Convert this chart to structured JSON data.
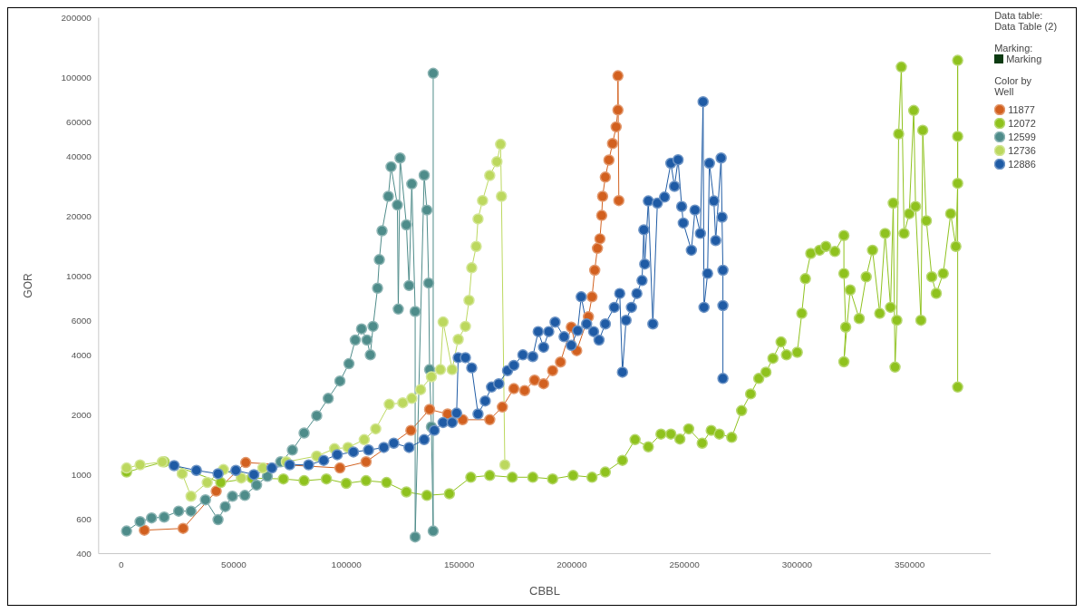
{
  "chart_data": {
    "type": "line",
    "xlabel": "CBBL",
    "ylabel": "GOR",
    "legend_title": "Color by Well",
    "legend": "right",
    "marker": "circle",
    "log": "y",
    "annotations": [
      "Data table:",
      "Data Table (2)",
      "Marking:",
      "Marking"
    ],
    "xlim": [
      -10000,
      386000
    ],
    "xticks": [
      0,
      50000,
      100000,
      150000,
      200000,
      250000,
      300000,
      350000
    ],
    "ylim": [
      400,
      200000
    ],
    "yticks": [
      400,
      600,
      1000,
      2000,
      4000,
      6000,
      10000,
      20000,
      40000,
      60000,
      100000,
      200000
    ],
    "series": [
      {
        "name": "11877",
        "color": "#d2601f",
        "x": [
          10300,
          27500,
          42200,
          55300,
          97100,
          108700,
          128600,
          136900,
          144900,
          151600,
          163600,
          169200,
          174300,
          179100,
          183500,
          187500,
          191500,
          195000,
          199800,
          202200,
          207400,
          209000,
          210200,
          211400,
          212500,
          213300,
          213700,
          214900,
          216500,
          218100,
          219700,
          220500,
          220500,
          220900
        ],
        "values": [
          525,
          536,
          826,
          1150,
          1080,
          1160,
          1670,
          2130,
          2020,
          1890,
          1890,
          2190,
          2710,
          2650,
          2990,
          2870,
          3340,
          3690,
          5530,
          4210,
          6240,
          7860,
          10700,
          13800,
          15400,
          20200,
          25200,
          31500,
          38400,
          46500,
          56400,
          68600,
          102000,
          24000
        ]
      },
      {
        "name": "12072",
        "color": "#8fc21e",
        "x": [
          2400,
          19100,
          44200,
          58100,
          72000,
          81200,
          91100,
          99900,
          108700,
          117800,
          126600,
          135700,
          145700,
          155200,
          163600,
          173600,
          182700,
          191500,
          200600,
          209000,
          214900,
          222500,
          228100,
          234000,
          239600,
          244000,
          248000,
          251900,
          257900,
          261900,
          265500,
          271000,
          275400,
          279400,
          283000,
          286200,
          289300,
          292900,
          295300,
          300100,
          302100,
          303700,
          306100,
          310000,
          312800,
          316800,
          320800,
          320800,
          321600,
          320800,
          323600,
          327600,
          330700,
          333500,
          336700,
          339100,
          341500,
          342700,
          343500,
          344300,
          345100,
          346300,
          347500,
          349800,
          351800,
          352600,
          355000,
          355800,
          357400,
          359800,
          361800,
          364900,
          368200,
          370500,
          371300,
          371300,
          371300,
          371300
        ],
        "values": [
          1030,
          1160,
          913,
          961,
          951,
          932,
          951,
          904,
          932,
          913,
          818,
          786,
          801,
          970,
          990,
          970,
          970,
          951,
          990,
          970,
          1030,
          1180,
          1500,
          1380,
          1600,
          1600,
          1510,
          1700,
          1440,
          1670,
          1600,
          1540,
          2100,
          2550,
          3050,
          3280,
          3850,
          4660,
          4010,
          4130,
          6490,
          9700,
          13000,
          13500,
          14100,
          13300,
          16000,
          10300,
          5530,
          3700,
          8510,
          6110,
          9910,
          13500,
          6490,
          16400,
          6960,
          23300,
          3480,
          5990,
          52000,
          113000,
          16400,
          20600,
          68200,
          22400,
          5990,
          54200,
          19000,
          9910,
          8180,
          10300,
          20600,
          14100,
          29300,
          122000,
          50500,
          2760
        ]
      },
      {
        "name": "12599",
        "color": "#4e8c8a",
        "x": [
          2400,
          8400,
          13500,
          19100,
          25500,
          31000,
          37400,
          43000,
          46200,
          49400,
          54900,
          60100,
          64900,
          70800,
          76000,
          81200,
          86800,
          91900,
          97100,
          101100,
          103900,
          106700,
          109100,
          110600,
          111800,
          113800,
          114600,
          115800,
          118600,
          119800,
          122600,
          123000,
          123800,
          126600,
          127800,
          129000,
          130500,
          130500,
          134500,
          135700,
          136500,
          136900,
          137700,
          138500,
          138500
        ],
        "values": [
          520,
          580,
          605,
          611,
          655,
          655,
          747,
          593,
          690,
          778,
          786,
          886,
          980,
          1160,
          1330,
          1620,
          1980,
          2420,
          2960,
          3620,
          4760,
          5420,
          4760,
          4010,
          5580,
          8690,
          12100,
          16900,
          25200,
          35500,
          22800,
          6820,
          39300,
          18100,
          8960,
          29100,
          6630,
          485,
          32200,
          21500,
          9220,
          3380,
          1740,
          520,
          105000
        ]
      },
      {
        "name": "12736",
        "color": "#bcd85e",
        "x": [
          2400,
          8400,
          18300,
          27100,
          31000,
          38200,
          45400,
          53300,
          62900,
          73300,
          86800,
          94700,
          100700,
          107900,
          113000,
          119000,
          125000,
          129000,
          132900,
          137700,
          141700,
          142900,
          146900,
          149600,
          152800,
          154400,
          155600,
          157600,
          158400,
          160400,
          163600,
          166800,
          168400,
          168800,
          170300
        ],
        "values": [
          1080,
          1120,
          1160,
          1010,
          778,
          913,
          1060,
          961,
          1080,
          1160,
          1240,
          1350,
          1370,
          1500,
          1700,
          2260,
          2300,
          2420,
          2680,
          3110,
          3380,
          5870,
          3380,
          4800,
          5580,
          7550,
          11000,
          14100,
          19400,
          24000,
          32100,
          37700,
          46100,
          25200,
          1120
        ]
      },
      {
        "name": "12886",
        "color": "#1f5ba5",
        "x": [
          23500,
          33400,
          43000,
          50900,
          58900,
          66900,
          74800,
          83200,
          89900,
          95900,
          103100,
          109800,
          116600,
          121000,
          127800,
          134500,
          139000,
          142900,
          146900,
          148900,
          149600,
          152800,
          155600,
          158400,
          161600,
          164400,
          167600,
          171500,
          174300,
          178300,
          182700,
          185100,
          187500,
          189800,
          192600,
          196600,
          199800,
          202600,
          204200,
          206600,
          209700,
          212100,
          214900,
          218900,
          221300,
          222500,
          224100,
          226500,
          228900,
          231200,
          232000,
          232400,
          234000,
          236000,
          238000,
          241200,
          244000,
          245600,
          247200,
          248800,
          249500,
          253100,
          254700,
          257100,
          258300,
          258700,
          260300,
          261100,
          263100,
          263900,
          266300,
          266700,
          267100,
          267100,
          267100
        ],
        "values": [
          1110,
          1050,
          1010,
          1050,
          1000,
          1080,
          1120,
          1120,
          1180,
          1260,
          1300,
          1330,
          1370,
          1440,
          1370,
          1500,
          1670,
          1830,
          1830,
          2040,
          3880,
          3880,
          3450,
          2020,
          2350,
          2760,
          2870,
          3340,
          3550,
          4010,
          3930,
          5250,
          4380,
          5250,
          5860,
          4950,
          4480,
          5310,
          7860,
          5740,
          5250,
          4760,
          5740,
          6960,
          8170,
          3280,
          5990,
          6960,
          8170,
          9500,
          17100,
          11500,
          23900,
          5740,
          23300,
          25000,
          37000,
          28300,
          38500,
          22400,
          18500,
          13500,
          21500,
          16400,
          75500,
          6960,
          10300,
          37000,
          23900,
          15100,
          39300,
          19800,
          10700,
          7100,
          3050
        ]
      }
    ]
  }
}
